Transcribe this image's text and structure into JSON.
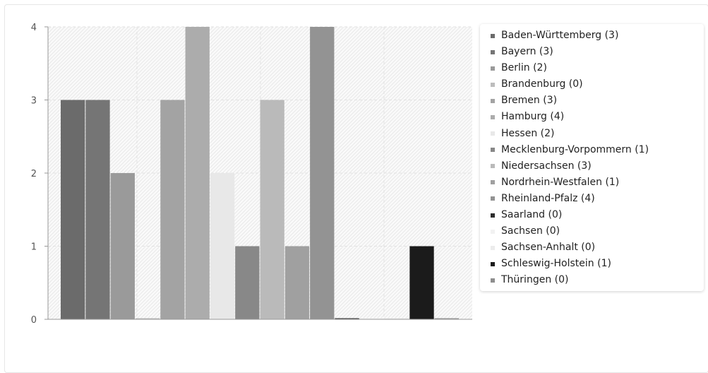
{
  "chart_data": {
    "type": "bar",
    "ylim": [
      0,
      4
    ],
    "yticks": [
      "0",
      "1",
      "2",
      "3",
      "4"
    ],
    "grid": true,
    "legend_position": "right",
    "series": [
      {
        "name": "Baden-Württemberg",
        "count_label": "(3)",
        "value": 3,
        "color": "#6b6b6b"
      },
      {
        "name": "Bayern",
        "count_label": "(3)",
        "value": 3,
        "color": "#757575"
      },
      {
        "name": "Berlin",
        "count_label": "(2)",
        "value": 2,
        "color": "#9a9a9a"
      },
      {
        "name": "Brandenburg",
        "count_label": "(0)",
        "value": 0,
        "color": "#bdbdbd"
      },
      {
        "name": "Bremen",
        "count_label": "(3)",
        "value": 3,
        "color": "#a3a3a3"
      },
      {
        "name": "Hamburg",
        "count_label": "(4)",
        "value": 4,
        "color": "#acacac"
      },
      {
        "name": "Hessen",
        "count_label": "(2)",
        "value": 2,
        "color": "#e8e8e8"
      },
      {
        "name": "Mecklenburg-Vorpommern",
        "count_label": "(1)",
        "value": 1,
        "color": "#888888"
      },
      {
        "name": "Niedersachsen",
        "count_label": "(3)",
        "value": 3,
        "color": "#bababa"
      },
      {
        "name": "Nordrhein-Westfalen",
        "count_label": "(1)",
        "value": 1,
        "color": "#a0a0a0"
      },
      {
        "name": "Rheinland-Pfalz",
        "count_label": "(4)",
        "value": 4,
        "color": "#939393"
      },
      {
        "name": "Saarland",
        "count_label": "(0)",
        "value": 0,
        "color": "#2d2d2d"
      },
      {
        "name": "Sachsen",
        "count_label": "(0)",
        "value": 0,
        "color": "#f2f2f2"
      },
      {
        "name": "Sachsen-Anhalt",
        "count_label": "(0)",
        "value": 0,
        "color": "#ececec"
      },
      {
        "name": "Schleswig-Holstein",
        "count_label": "(1)",
        "value": 1,
        "color": "#1b1b1b"
      },
      {
        "name": "Thüringen",
        "count_label": "(0)",
        "value": 0,
        "color": "#8e8e8e"
      }
    ]
  }
}
